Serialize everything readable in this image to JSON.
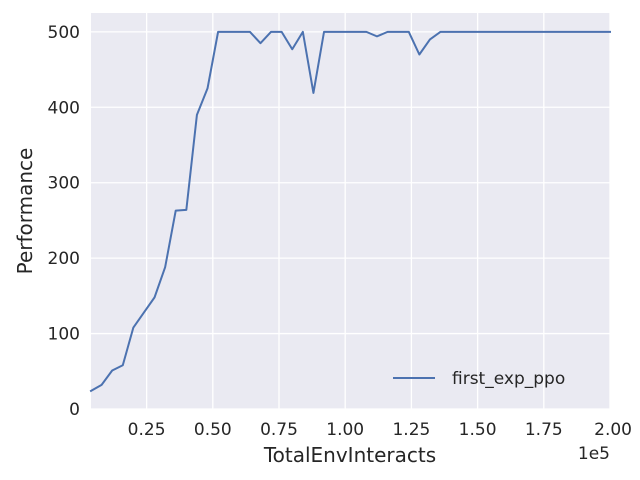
{
  "chart_data": {
    "type": "line",
    "xlabel": "TotalEnvInteracts",
    "ylabel": "Performance",
    "x_offset_label": "1e5",
    "xlim": [
      4000,
      200000
    ],
    "ylim": [
      0,
      525
    ],
    "x_ticks": [
      25000,
      50000,
      75000,
      100000,
      125000,
      150000,
      175000,
      200000
    ],
    "x_tick_labels": [
      "0.25",
      "0.50",
      "0.75",
      "1.00",
      "1.25",
      "1.50",
      "1.75",
      "2.00"
    ],
    "y_ticks": [
      0,
      100,
      200,
      300,
      400,
      500
    ],
    "y_tick_labels": [
      "0",
      "100",
      "200",
      "300",
      "400",
      "500"
    ],
    "grid": true,
    "legend_position": "lower-right",
    "series": [
      {
        "name": "first_exp_ppo",
        "color": "#4c72b0",
        "x": [
          4000,
          8000,
          12000,
          16000,
          20000,
          24000,
          28000,
          32000,
          36000,
          40000,
          44000,
          48000,
          52000,
          56000,
          60000,
          64000,
          68000,
          72000,
          76000,
          80000,
          84000,
          88000,
          92000,
          96000,
          100000,
          104000,
          108000,
          112000,
          116000,
          120000,
          124000,
          128000,
          132000,
          136000,
          140000,
          144000,
          148000,
          152000,
          156000,
          160000,
          164000,
          168000,
          172000,
          176000,
          180000,
          184000,
          188000,
          192000,
          196000,
          200000
        ],
        "y": [
          24,
          32,
          51,
          58,
          108,
          128,
          148,
          188,
          263,
          264,
          390,
          425,
          500,
          500,
          500,
          500,
          485,
          500,
          500,
          477,
          500,
          419,
          500,
          500,
          500,
          500,
          500,
          494,
          500,
          500,
          500,
          470,
          490,
          500,
          500,
          500,
          500,
          500,
          500,
          500,
          500,
          500,
          500,
          500,
          500,
          500,
          500,
          500,
          500,
          500
        ]
      }
    ]
  }
}
